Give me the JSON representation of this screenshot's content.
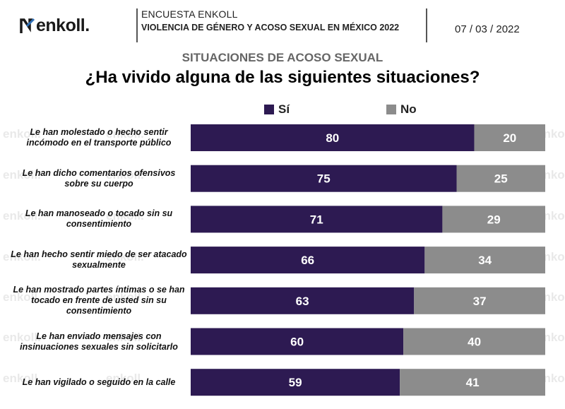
{
  "header": {
    "brand": "enkoll.",
    "survey_line1": "ENCUESTA ENKOLL",
    "survey_line2": "VIOLENCIA DE GÉNERO Y ACOSO SEXUAL EN MÉXICO 2022",
    "date": "07 / 03 / 2022"
  },
  "watermark": "enkoll.",
  "colors": {
    "si": "#2d1a52",
    "no": "#8c8c8c"
  },
  "chart_data": {
    "type": "bar",
    "orientation": "horizontal",
    "stacked": true,
    "percent": true,
    "subtitle": "SITUACIONES DE ACOSO SEXUAL",
    "title": "¿Ha vivido alguna de las siguientes situaciones?",
    "legend_position": "top",
    "grid": false,
    "xlim": [
      0,
      100
    ],
    "categories": [
      "Le han molestado o hecho sentir incómodo en el transporte público",
      "Le han dicho comentarios ofensivos sobre su cuerpo",
      "Le han manoseado o tocado sin su consentimiento",
      "Le han hecho sentir miedo de ser atacado sexualmente",
      "Le han mostrado partes íntimas o se han tocado en frente de usted sin su consentimiento",
      "Le han enviado mensajes con insinuaciones sexuales sin solicitarlo",
      "Le han vigilado o seguido en la calle"
    ],
    "series": [
      {
        "name": "Sí",
        "color": "#2d1a52",
        "values": [
          80,
          75,
          71,
          66,
          63,
          60,
          59
        ]
      },
      {
        "name": "No",
        "color": "#8c8c8c",
        "values": [
          20,
          25,
          29,
          34,
          37,
          40,
          41
        ]
      }
    ]
  }
}
